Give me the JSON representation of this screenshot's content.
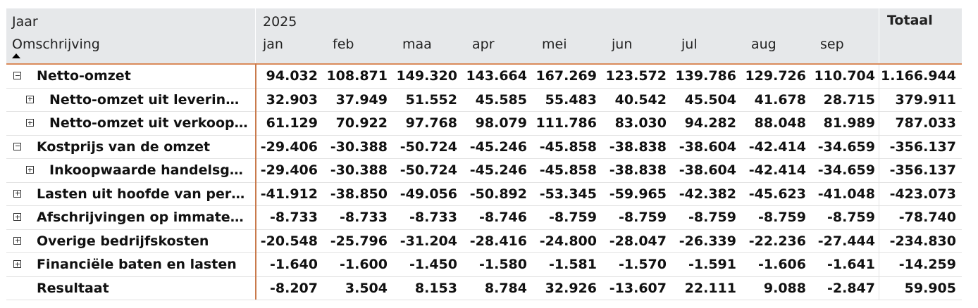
{
  "header": {
    "year_label": "Jaar",
    "year_value": "2025",
    "desc_label": "Omschrijving",
    "total_label": "Totaal",
    "months": [
      "jan",
      "feb",
      "maa",
      "apr",
      "mei",
      "jun",
      "jul",
      "aug",
      "sep"
    ]
  },
  "rows": [
    {
      "label": "Netto-omzet",
      "indent": 0,
      "toggle": "minus",
      "values": [
        "94.032",
        "108.871",
        "149.320",
        "143.664",
        "167.269",
        "123.572",
        "139.786",
        "129.726",
        "110.704"
      ],
      "total": "1.166.944"
    },
    {
      "label": "Netto-omzet uit leveringe...",
      "indent": 1,
      "toggle": "plus",
      "values": [
        "32.903",
        "37.949",
        "51.552",
        "45.585",
        "55.483",
        "40.542",
        "45.504",
        "41.678",
        "28.715"
      ],
      "total": "379.911"
    },
    {
      "label": "Netto-omzet uit verkoop ...",
      "indent": 1,
      "toggle": "plus",
      "values": [
        "61.129",
        "70.922",
        "97.768",
        "98.079",
        "111.786",
        "83.030",
        "94.282",
        "88.048",
        "81.989"
      ],
      "total": "787.033"
    },
    {
      "label": "Kostprijs van de omzet",
      "indent": 0,
      "toggle": "minus",
      "values": [
        "-29.406",
        "-30.388",
        "-50.724",
        "-45.246",
        "-45.858",
        "-38.838",
        "-38.604",
        "-42.414",
        "-34.659"
      ],
      "total": "-356.137"
    },
    {
      "label": "Inkoopwaarde handelsgoe...",
      "indent": 1,
      "toggle": "plus",
      "values": [
        "-29.406",
        "-30.388",
        "-50.724",
        "-45.246",
        "-45.858",
        "-38.838",
        "-38.604",
        "-42.414",
        "-34.659"
      ],
      "total": "-356.137"
    },
    {
      "label": "Lasten uit hoofde van perso...",
      "indent": 0,
      "toggle": "plus",
      "values": [
        "-41.912",
        "-38.850",
        "-49.056",
        "-50.892",
        "-53.345",
        "-59.965",
        "-42.382",
        "-45.623",
        "-41.048"
      ],
      "total": "-423.073"
    },
    {
      "label": "Afschrijvingen op immateri...",
      "indent": 0,
      "toggle": "plus",
      "values": [
        "-8.733",
        "-8.733",
        "-8.733",
        "-8.746",
        "-8.759",
        "-8.759",
        "-8.759",
        "-8.759",
        "-8.759"
      ],
      "total": "-78.740"
    },
    {
      "label": "Overige bedrijfskosten",
      "indent": 0,
      "toggle": "plus",
      "values": [
        "-20.548",
        "-25.796",
        "-31.204",
        "-28.416",
        "-24.800",
        "-28.047",
        "-26.339",
        "-22.236",
        "-27.444"
      ],
      "total": "-234.830"
    },
    {
      "label": "Financiële baten en lasten",
      "indent": 0,
      "toggle": "plus",
      "values": [
        "-1.640",
        "-1.600",
        "-1.450",
        "-1.580",
        "-1.581",
        "-1.570",
        "-1.591",
        "-1.606",
        "-1.641"
      ],
      "total": "-14.259"
    },
    {
      "label": "Resultaat",
      "indent": 0,
      "toggle": "none",
      "values": [
        "-8.207",
        "3.504",
        "8.153",
        "8.784",
        "32.926",
        "-13.607",
        "22.111",
        "9.088",
        "-2.847"
      ],
      "total": "59.905"
    }
  ]
}
